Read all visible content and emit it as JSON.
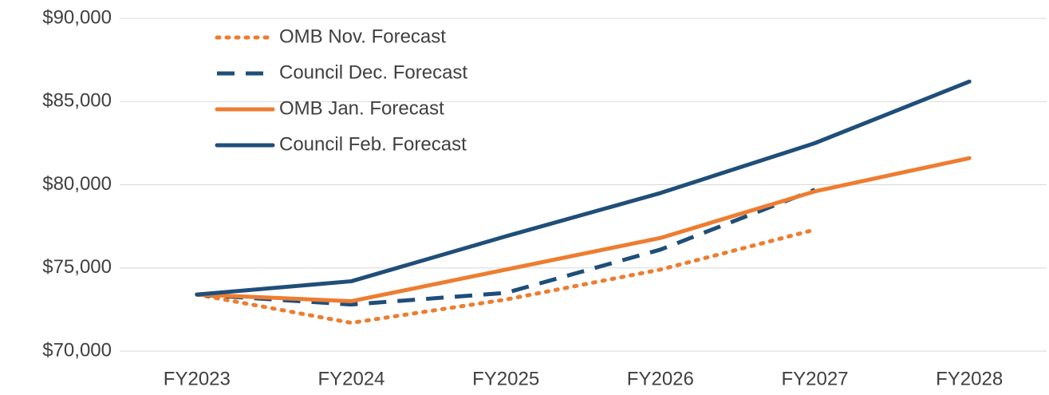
{
  "chart_data": {
    "type": "line",
    "categories": [
      "FY2023",
      "FY2024",
      "FY2025",
      "FY2026",
      "FY2027",
      "FY2028"
    ],
    "series": [
      {
        "name": "OMB Nov. Forecast",
        "color": "#ed7d31",
        "dash": "dotted",
        "values": [
          73400,
          71700,
          73100,
          74900,
          77300,
          null
        ]
      },
      {
        "name": "Council Dec. Forecast",
        "color": "#1f4e79",
        "dash": "dashed",
        "values": [
          73400,
          72800,
          73500,
          76100,
          79700,
          null
        ]
      },
      {
        "name": "OMB Jan. Forecast",
        "color": "#ed7d31",
        "dash": "solid",
        "values": [
          73400,
          73000,
          74900,
          76800,
          79600,
          81600
        ]
      },
      {
        "name": "Council Feb. Forecast",
        "color": "#1f4e79",
        "dash": "solid",
        "values": [
          73400,
          74200,
          76900,
          79500,
          82500,
          86200
        ]
      }
    ],
    "ylim": [
      70000,
      90000
    ],
    "yticks": [
      {
        "value": 70000,
        "label": "$70,000"
      },
      {
        "value": 75000,
        "label": "$75,000"
      },
      {
        "value": 80000,
        "label": "$80,000"
      },
      {
        "value": 85000,
        "label": "$85,000"
      },
      {
        "value": 90000,
        "label": "$90,000"
      }
    ],
    "grid": true,
    "legend": "top-left"
  }
}
